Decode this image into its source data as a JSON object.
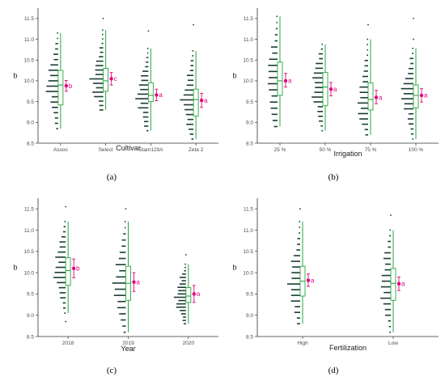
{
  "figure": {
    "panels": [
      {
        "caption": "(a)"
      },
      {
        "caption": "(b)"
      },
      {
        "caption": "(c)"
      },
      {
        "caption": "(d)"
      }
    ]
  },
  "colors": {
    "box": "#22a93c",
    "dots": "#1b3d36",
    "mean": "#e6007e",
    "axis_text": "#4d4d4d"
  },
  "chart_data": [
    {
      "type": "box",
      "xlabel": "Cultivar",
      "ylabel": "b",
      "ylim": [
        8.5,
        11.75
      ],
      "yticks": [
        8.5,
        9.0,
        9.5,
        10.0,
        10.5,
        11.0,
        11.5
      ],
      "categories": [
        "Assos",
        "Select",
        "Stam129A",
        "Zeta 2"
      ],
      "box": [
        {
          "whisker_low": 8.85,
          "q1": 9.42,
          "median": 9.9,
          "q3": 10.25,
          "whisker_high": 11.15
        },
        {
          "whisker_low": 9.3,
          "q1": 9.75,
          "median": 10.0,
          "q3": 10.3,
          "whisker_high": 11.22
        },
        {
          "whisker_low": 8.8,
          "q1": 9.5,
          "median": 9.65,
          "q3": 9.95,
          "whisker_high": 10.78
        },
        {
          "whisker_low": 8.6,
          "q1": 9.15,
          "median": 9.55,
          "q3": 9.8,
          "whisker_high": 10.72
        }
      ],
      "means": [
        9.88,
        10.05,
        9.66,
        9.53
      ],
      "mean_ci": [
        [
          9.75,
          10.01
        ],
        [
          9.9,
          10.2
        ],
        [
          9.52,
          9.8
        ],
        [
          9.36,
          9.7
        ]
      ],
      "letters": [
        "b",
        "c",
        "a",
        "a"
      ],
      "outliers": [
        [],
        [
          11.5
        ],
        [
          11.2
        ],
        [
          11.35
        ]
      ]
    },
    {
      "type": "box",
      "xlabel": "Irrigation",
      "ylabel": "b",
      "ylim": [
        8.5,
        11.75
      ],
      "yticks": [
        8.5,
        9.0,
        9.5,
        10.0,
        10.5,
        11.0,
        11.5
      ],
      "categories": [
        "25 %",
        "50 %",
        "75 %",
        "100 %"
      ],
      "box": [
        {
          "whisker_low": 8.9,
          "q1": 9.65,
          "median": 10.0,
          "q3": 10.45,
          "whisker_high": 11.55
        },
        {
          "whisker_low": 8.8,
          "q1": 9.4,
          "median": 9.85,
          "q3": 10.2,
          "whisker_high": 10.88
        },
        {
          "whisker_low": 8.7,
          "q1": 9.3,
          "median": 9.55,
          "q3": 9.95,
          "whisker_high": 11.0
        },
        {
          "whisker_low": 8.6,
          "q1": 9.35,
          "median": 9.65,
          "q3": 9.9,
          "whisker_high": 10.78
        }
      ],
      "means": [
        10.0,
        9.8,
        9.6,
        9.65
      ],
      "mean_ci": [
        [
          9.85,
          10.18
        ],
        [
          9.64,
          9.96
        ],
        [
          9.45,
          9.77
        ],
        [
          9.49,
          9.81
        ]
      ],
      "letters": [
        "a",
        "a",
        "a",
        "a"
      ],
      "outliers": [
        [],
        [],
        [
          11.35
        ],
        [
          11.5,
          11.0
        ]
      ]
    },
    {
      "type": "box",
      "xlabel": "Year",
      "ylabel": "b",
      "ylim": [
        8.5,
        11.75
      ],
      "yticks": [
        8.5,
        9.0,
        9.5,
        10.0,
        10.5,
        11.0,
        11.5
      ],
      "categories": [
        "2018",
        "2019",
        "2020"
      ],
      "box": [
        {
          "whisker_low": 9.05,
          "q1": 9.7,
          "median": 10.05,
          "q3": 10.35,
          "whisker_high": 11.2
        },
        {
          "whisker_low": 8.6,
          "q1": 9.35,
          "median": 9.75,
          "q3": 10.15,
          "whisker_high": 11.2
        },
        {
          "whisker_low": 8.8,
          "q1": 9.3,
          "median": 9.45,
          "q3": 9.65,
          "whisker_high": 10.2
        }
      ],
      "means": [
        10.1,
        9.78,
        9.5
      ],
      "mean_ci": [
        [
          9.88,
          10.32
        ],
        [
          9.56,
          10.0
        ],
        [
          9.3,
          9.7
        ]
      ],
      "letters": [
        "b",
        "a",
        "a"
      ],
      "outliers": [
        [
          11.55,
          8.85
        ],
        [
          11.5
        ],
        [
          10.42
        ]
      ]
    },
    {
      "type": "box",
      "xlabel": "Fertilization",
      "ylabel": "b",
      "ylim": [
        8.5,
        11.75
      ],
      "yticks": [
        8.5,
        9.0,
        9.5,
        10.0,
        10.5,
        11.0,
        11.5
      ],
      "categories": [
        "High",
        "Low"
      ],
      "box": [
        {
          "whisker_low": 8.8,
          "q1": 9.45,
          "median": 9.8,
          "q3": 10.15,
          "whisker_high": 11.2
        },
        {
          "whisker_low": 8.6,
          "q1": 9.35,
          "median": 9.75,
          "q3": 10.1,
          "whisker_high": 11.0
        }
      ],
      "means": [
        9.82,
        9.74
      ],
      "mean_ci": [
        [
          9.68,
          9.97
        ],
        [
          9.58,
          9.9
        ]
      ],
      "letters": [
        "a",
        "a"
      ],
      "outliers": [
        [
          11.5
        ],
        [
          11.35
        ]
      ]
    }
  ]
}
